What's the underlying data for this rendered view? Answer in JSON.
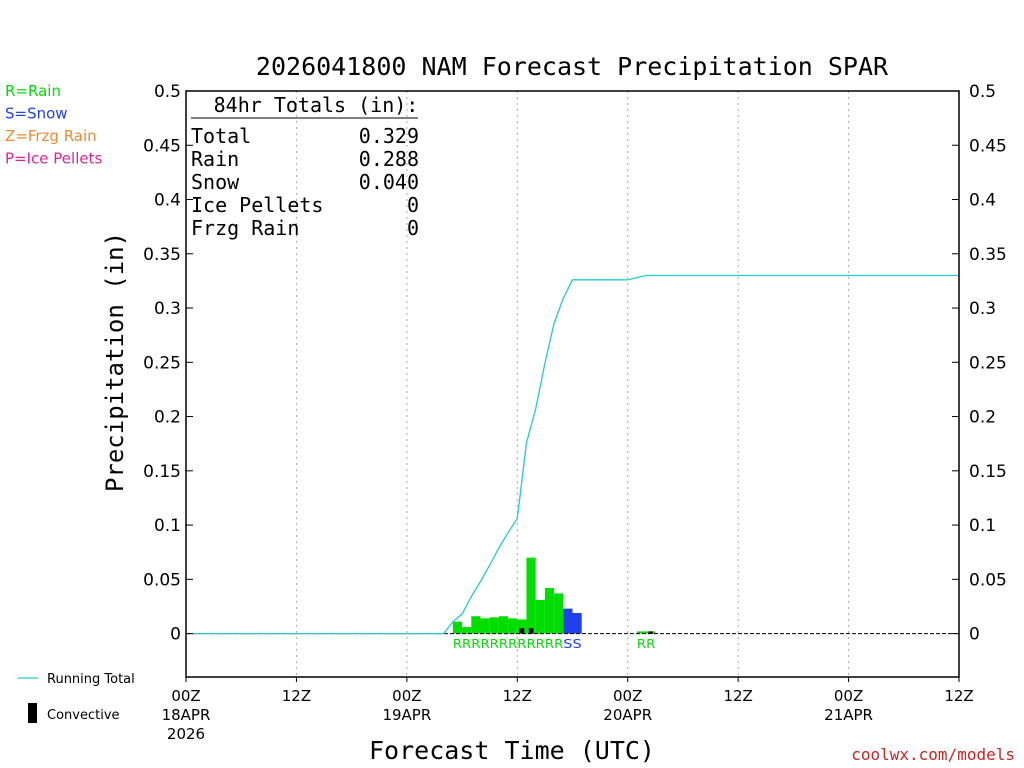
{
  "chart_data": {
    "type": "bar",
    "title": "2026041800 NAM Forecast Precipitation SPAR",
    "xlabel": "Forecast Time (UTC)",
    "ylabel": "Precipitation (in)",
    "ylim": [
      -0.04,
      0.5
    ],
    "y_ticks": [
      {
        "value": 0,
        "label": "0"
      },
      {
        "value": 0.05,
        "label": "0.05"
      },
      {
        "value": 0.1,
        "label": "0.1"
      },
      {
        "value": 0.15,
        "label": "0.15"
      },
      {
        "value": 0.2,
        "label": "0.2"
      },
      {
        "value": 0.25,
        "label": "0.25"
      },
      {
        "value": 0.3,
        "label": "0.3"
      },
      {
        "value": 0.35,
        "label": "0.35"
      },
      {
        "value": 0.4,
        "label": "0.4"
      },
      {
        "value": 0.45,
        "label": "0.45"
      },
      {
        "value": 0.5,
        "label": "0.5"
      }
    ],
    "xlim_hours": [
      0,
      84
    ],
    "x_ticks": [
      {
        "hour": 0,
        "label": "00Z",
        "sub": "18APR",
        "sub2": "2026"
      },
      {
        "hour": 12,
        "label": "12Z",
        "sub": "",
        "sub2": ""
      },
      {
        "hour": 24,
        "label": "00Z",
        "sub": "19APR",
        "sub2": ""
      },
      {
        "hour": 36,
        "label": "12Z",
        "sub": "",
        "sub2": ""
      },
      {
        "hour": 48,
        "label": "00Z",
        "sub": "20APR",
        "sub2": ""
      },
      {
        "hour": 60,
        "label": "12Z",
        "sub": "",
        "sub2": ""
      },
      {
        "hour": 72,
        "label": "00Z",
        "sub": "21APR",
        "sub2": ""
      },
      {
        "hour": 84,
        "label": "12Z",
        "sub": "",
        "sub2": ""
      }
    ],
    "grid_hours": [
      12,
      24,
      36,
      48,
      60,
      72
    ],
    "bar_width_hours": 1,
    "bars": [
      {
        "hour": 29,
        "value": 0.011,
        "type": "R",
        "convective": 0
      },
      {
        "hour": 30,
        "value": 0.006,
        "type": "R",
        "convective": 0
      },
      {
        "hour": 31,
        "value": 0.016,
        "type": "R",
        "convective": 0
      },
      {
        "hour": 32,
        "value": 0.014,
        "type": "R",
        "convective": 0
      },
      {
        "hour": 33,
        "value": 0.015,
        "type": "R",
        "convective": 0
      },
      {
        "hour": 34,
        "value": 0.016,
        "type": "R",
        "convective": 0
      },
      {
        "hour": 35,
        "value": 0.014,
        "type": "R",
        "convective": 0
      },
      {
        "hour": 36,
        "value": 0.013,
        "type": "R",
        "convective": 0.005
      },
      {
        "hour": 37,
        "value": 0.07,
        "type": "R",
        "convective": 0.005
      },
      {
        "hour": 38,
        "value": 0.031,
        "type": "R",
        "convective": 0
      },
      {
        "hour": 39,
        "value": 0.042,
        "type": "R",
        "convective": 0
      },
      {
        "hour": 40,
        "value": 0.037,
        "type": "R",
        "convective": 0
      },
      {
        "hour": 41,
        "value": 0.023,
        "type": "S",
        "convective": 0
      },
      {
        "hour": 42,
        "value": 0.019,
        "type": "S",
        "convective": 0
      },
      {
        "hour": 49,
        "value": 0.002,
        "type": "R",
        "convective": 0
      },
      {
        "hour": 50,
        "value": 0.002,
        "type": "R",
        "convective": 0.002
      }
    ],
    "running_total": {
      "name": "Running Total",
      "x": [
        0,
        28,
        29,
        30,
        31,
        32,
        33,
        34,
        35,
        36,
        37,
        38,
        39,
        40,
        41,
        42,
        48,
        49,
        50,
        51,
        84
      ],
      "y": [
        0,
        0,
        0.011,
        0.018,
        0.034,
        0.048,
        0.063,
        0.079,
        0.093,
        0.106,
        0.176,
        0.207,
        0.249,
        0.286,
        0.309,
        0.326,
        0.326,
        0.328,
        0.33,
        0.33,
        0.33
      ]
    },
    "type_labels": [
      {
        "hour": 29,
        "text": "RRRRRRRRRRRR",
        "type": "R"
      },
      {
        "hour": 41,
        "text": "SS",
        "type": "S"
      },
      {
        "hour": 49,
        "text": "RR",
        "type": "R"
      }
    ],
    "totals_box": {
      "header": "84hr Totals (in):",
      "rows": [
        {
          "label": "Total",
          "value": "0.329"
        },
        {
          "label": "Rain",
          "value": "0.288"
        },
        {
          "label": "Snow",
          "value": "0.040"
        },
        {
          "label": "Ice Pellets",
          "value": "0"
        },
        {
          "label": "Frzg Rain",
          "value": "0"
        }
      ]
    },
    "legend_types": [
      {
        "text": "R=Rain",
        "type": "R"
      },
      {
        "text": "S=Snow",
        "type": "S"
      },
      {
        "text": "Z=Frzg Rain",
        "type": "Z"
      },
      {
        "text": "P=Ice Pellets",
        "type": "P"
      }
    ],
    "legend_bottom": {
      "running_total_label": "Running Total",
      "convective_label": "Convective"
    },
    "credit": "coolwx.com/models",
    "colors": {
      "R": "#00dd00",
      "S": "#2040ee",
      "Z": "#ee8833",
      "P": "#dd2299",
      "convective": "#000000",
      "running_total": "#22cccc",
      "grid": "#aaaaaa",
      "credit": "#cc2222"
    }
  }
}
